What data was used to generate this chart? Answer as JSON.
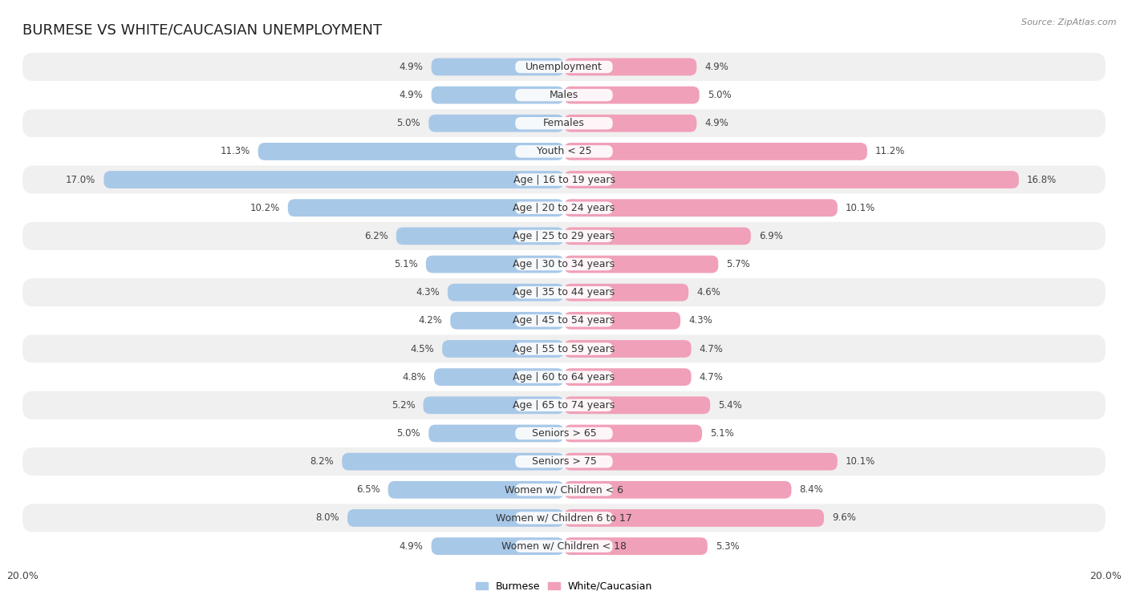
{
  "title": "BURMESE VS WHITE/CAUCASIAN UNEMPLOYMENT",
  "source": "Source: ZipAtlas.com",
  "categories": [
    "Unemployment",
    "Males",
    "Females",
    "Youth < 25",
    "Age | 16 to 19 years",
    "Age | 20 to 24 years",
    "Age | 25 to 29 years",
    "Age | 30 to 34 years",
    "Age | 35 to 44 years",
    "Age | 45 to 54 years",
    "Age | 55 to 59 years",
    "Age | 60 to 64 years",
    "Age | 65 to 74 years",
    "Seniors > 65",
    "Seniors > 75",
    "Women w/ Children < 6",
    "Women w/ Children 6 to 17",
    "Women w/ Children < 18"
  ],
  "burmese": [
    4.9,
    4.9,
    5.0,
    11.3,
    17.0,
    10.2,
    6.2,
    5.1,
    4.3,
    4.2,
    4.5,
    4.8,
    5.2,
    5.0,
    8.2,
    6.5,
    8.0,
    4.9
  ],
  "white": [
    4.9,
    5.0,
    4.9,
    11.2,
    16.8,
    10.1,
    6.9,
    5.7,
    4.6,
    4.3,
    4.7,
    4.7,
    5.4,
    5.1,
    10.1,
    8.4,
    9.6,
    5.3
  ],
  "burmese_color": "#a8c8e8",
  "white_color": "#f0a0b8",
  "bar_height": 0.62,
  "xlim": 20.0,
  "bg_color": "#f0f0f0",
  "row_colors_even": "#f0f0f0",
  "row_colors_odd": "#ffffff",
  "title_fontsize": 13,
  "label_fontsize": 9,
  "value_fontsize": 8.5,
  "legend_burmese": "Burmese",
  "legend_white": "White/Caucasian"
}
